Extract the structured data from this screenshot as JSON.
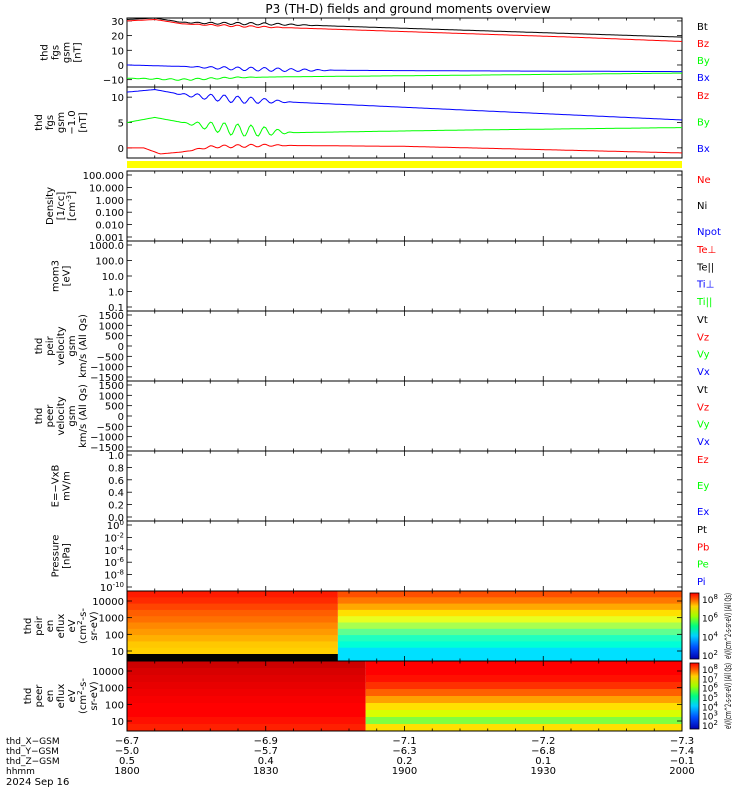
{
  "title": "P3 (TH-D) fields and ground moments overview",
  "colors": {
    "black": "#000000",
    "red": "#ff0000",
    "green": "#00ff00",
    "blue": "#0000ff",
    "yellow": "#ffff00"
  },
  "chart_data": [
    {
      "id": "fgs",
      "type": "line",
      "ylabel": [
        "thd",
        "fgs",
        "gsm",
        "[nT]"
      ],
      "ylim": [
        -15,
        32
      ],
      "yticks": [
        -10,
        0,
        10,
        20,
        30
      ],
      "tick_labels": [
        "−10",
        "0",
        "10",
        "20",
        "30"
      ],
      "legend": [
        {
          "name": "Bt",
          "color": "#000000"
        },
        {
          "name": "Bz",
          "color": "#ff0000"
        },
        {
          "name": "By",
          "color": "#00ff00"
        },
        {
          "name": "Bx",
          "color": "#0000ff"
        }
      ],
      "series": [
        {
          "name": "Bt",
          "color": "#000000",
          "x": [
            0,
            0.05,
            0.1,
            0.15,
            0.25,
            0.5,
            0.75,
            1
          ],
          "y": [
            31,
            32,
            29,
            28.5,
            28,
            25,
            22,
            19
          ],
          "osc": {
            "amp": 0.8,
            "start": 0.08,
            "end": 0.35
          }
        },
        {
          "name": "Bz",
          "color": "#ff0000",
          "x": [
            0,
            0.05,
            0.1,
            0.2,
            0.4,
            0.6,
            0.8,
            1
          ],
          "y": [
            30,
            31,
            28,
            26.5,
            24,
            21.5,
            19,
            16
          ],
          "osc": {
            "amp": 0.6,
            "start": 0.1,
            "end": 0.3
          }
        },
        {
          "name": "By",
          "color": "#00ff00",
          "x": [
            0,
            0.1,
            0.2,
            0.3,
            0.6,
            1
          ],
          "y": [
            -9,
            -10,
            -8.5,
            -8,
            -7,
            -5.5
          ],
          "osc": {
            "amp": 0.6,
            "start": 0.0,
            "end": 0.25
          }
        },
        {
          "name": "Bx",
          "color": "#0000ff",
          "x": [
            0,
            0.1,
            0.2,
            0.3,
            0.6,
            1
          ],
          "y": [
            0,
            -1,
            -2.5,
            -3.5,
            -4,
            -4.5
          ],
          "osc": {
            "amp": 1.3,
            "start": 0.1,
            "end": 0.38
          }
        }
      ]
    },
    {
      "id": "fgs-zoom",
      "type": "line",
      "ylabel": [
        "thd",
        "fgs",
        "gsm",
        "−1.0",
        "[nT]"
      ],
      "ylim": [
        -2,
        12
      ],
      "yticks": [
        0,
        5,
        10
      ],
      "tick_labels": [
        "0",
        "5",
        "10"
      ],
      "legend": [
        {
          "name": "Bz",
          "color": "#ff0000"
        },
        {
          "name": "By",
          "color": "#00ff00"
        },
        {
          "name": "Bx",
          "color": "#0000ff"
        }
      ],
      "series": [
        {
          "name": "Bz",
          "color": "#ff0000",
          "x": [
            0,
            0.03,
            0.06,
            0.1,
            0.15,
            0.25,
            0.5,
            1
          ],
          "y": [
            0,
            0,
            -1.2,
            -0.8,
            0.2,
            0.5,
            0.3,
            -1.0
          ],
          "osc": {
            "amp": 0.3,
            "start": 0.1,
            "end": 0.3
          }
        },
        {
          "name": "By",
          "color": "#00ff00",
          "x": [
            0,
            0.05,
            0.1,
            0.2,
            0.3,
            0.6,
            1
          ],
          "y": [
            5,
            6,
            5,
            3.5,
            3,
            3.5,
            4
          ],
          "osc": {
            "amp": 1.2,
            "start": 0.1,
            "end": 0.3
          }
        },
        {
          "name": "Bx",
          "color": "#0000ff",
          "x": [
            0,
            0.05,
            0.1,
            0.2,
            0.3,
            0.6,
            1
          ],
          "y": [
            11,
            11.5,
            10.5,
            9.5,
            9,
            7.5,
            5.5
          ],
          "osc": {
            "amp": 0.7,
            "start": 0.08,
            "end": 0.3
          }
        }
      ]
    },
    {
      "id": "density",
      "type": "line",
      "ylabel": [
        "Density",
        "[1/cc]",
        "[cm^-3]"
      ],
      "tick_labels": [
        "100.000",
        "10.000",
        "1.000",
        "0.100",
        "0.010",
        "0.001"
      ],
      "legend": [
        {
          "name": "Ne",
          "color": "#ff0000"
        },
        {
          "name": "Ni",
          "color": "#000000"
        },
        {
          "name": "Npot",
          "color": "#0000ff"
        }
      ]
    },
    {
      "id": "temperature",
      "type": "line",
      "ylabel": [
        "mom3",
        "[eV]"
      ],
      "tick_labels": [
        "1000.0",
        "100.0",
        "10.0",
        "1.0",
        "0.1"
      ],
      "legend": [
        {
          "name": "Te⊥",
          "color": "#ff0000"
        },
        {
          "name": "Te||",
          "color": "#000000"
        },
        {
          "name": "Ti⊥",
          "color": "#0000ff"
        },
        {
          "name": "Ti||",
          "color": "#00ff00"
        }
      ]
    },
    {
      "id": "peir-velocity",
      "type": "line",
      "ylabel": [
        "thd",
        "peir",
        "velocity",
        "gsm",
        "km/s (All Qs)"
      ],
      "tick_labels": [
        "1500",
        "1000",
        "500",
        "0",
        "−500",
        "−1000",
        "−1500"
      ],
      "legend": [
        {
          "name": "Vt",
          "color": "#000000"
        },
        {
          "name": "Vz",
          "color": "#ff0000"
        },
        {
          "name": "Vy",
          "color": "#00ff00"
        },
        {
          "name": "Vx",
          "color": "#0000ff"
        }
      ]
    },
    {
      "id": "peer-velocity",
      "type": "line",
      "ylabel": [
        "thd",
        "peer",
        "velocity",
        "gsm",
        "km/s (All Qs)"
      ],
      "tick_labels": [
        "1500",
        "1000",
        "500",
        "0",
        "−500",
        "−1000",
        "−1500"
      ],
      "legend": [
        {
          "name": "Vt",
          "color": "#000000"
        },
        {
          "name": "Vz",
          "color": "#ff0000"
        },
        {
          "name": "Vy",
          "color": "#00ff00"
        },
        {
          "name": "Vx",
          "color": "#0000ff"
        }
      ]
    },
    {
      "id": "efield",
      "type": "line",
      "ylabel": [
        "E=−VxB",
        "mV/m"
      ],
      "tick_labels": [
        "1.0",
        "0.8",
        "0.6",
        "0.4",
        "0.2",
        "0.0"
      ],
      "legend": [
        {
          "name": "Ez",
          "color": "#ff0000"
        },
        {
          "name": "Ey",
          "color": "#00ff00"
        },
        {
          "name": "Ex",
          "color": "#0000ff"
        }
      ]
    },
    {
      "id": "pressure",
      "type": "line",
      "ylabel": [
        "Pressure",
        "[nPa]"
      ],
      "tick_labels": [
        "10^0",
        "10^-2",
        "10^-4",
        "10^-6",
        "10^-8",
        "10^-10"
      ],
      "legend": [
        {
          "name": "Pt",
          "color": "#000000"
        },
        {
          "name": "Pb",
          "color": "#ff0000"
        },
        {
          "name": "Pe",
          "color": "#00ff00"
        },
        {
          "name": "Pi",
          "color": "#0000ff"
        }
      ]
    },
    {
      "id": "peir-spectrogram",
      "type": "heatmap",
      "ylabel": [
        "thd",
        "peir",
        "en",
        "eflux",
        "eV",
        "(cm^2-s-",
        "sr-eV)"
      ],
      "tick_labels": [
        "10000",
        "1000",
        "100",
        "10"
      ],
      "colorbar_labels": [
        "10^8",
        "10^6",
        "10^4",
        "10^2"
      ],
      "colorbar_title": "eV/(cm^2-s-sr-eV) (All Qs)",
      "split_x": 0.38,
      "bottom_black_frac": 0.1,
      "left_colors": [
        "#ff1a00",
        "#ff2a00",
        "#ff4400",
        "#ff5e00",
        "#ff7000",
        "#ff8800",
        "#ff9a00",
        "#ffb000",
        "#ffc800",
        "#ffd000"
      ],
      "right_colors": [
        "#ff5000",
        "#ff7800",
        "#ffa800",
        "#ffe000",
        "#e8ff20",
        "#a8ff50",
        "#60ff90",
        "#20ffc0",
        "#00ffd8",
        "#00e0ff"
      ]
    },
    {
      "id": "peer-spectrogram",
      "type": "heatmap",
      "ylabel": [
        "thd",
        "peer",
        "en",
        "eflux",
        "eV",
        "(cm^2-s-",
        "sr-eV)"
      ],
      "tick_labels": [
        "10000",
        "1000",
        "100",
        "10"
      ],
      "colorbar_labels": [
        "10^8",
        "10^7",
        "10^6",
        "10^5",
        "10^4",
        "10^3",
        "10^2"
      ],
      "colorbar_title": "eV/(cm^2-s-sr-eV) (All Qs)",
      "split_x": 0.43,
      "bottom_black_frac": 0,
      "left_colors": [
        "#cc0000",
        "#d80000",
        "#e00000",
        "#e80000",
        "#f00000",
        "#f80000",
        "#ff0000",
        "#ff0000",
        "#ff1000",
        "#ff2000"
      ],
      "right_colors": [
        "#ff0000",
        "#ff0000",
        "#ff1000",
        "#ff3000",
        "#ff6000",
        "#ffa000",
        "#ffe000",
        "#d8ff00",
        "#80ff40",
        "#ffe000"
      ]
    }
  ],
  "xaxis": {
    "rows": [
      {
        "label": "thd_X−GSM",
        "values": [
          "−6.7",
          "−6.9",
          "−7.1",
          "−7.2",
          "−7.3"
        ]
      },
      {
        "label": "thd_Y−GSM",
        "values": [
          "−5.0",
          "−5.7",
          "−6.3",
          "−6.8",
          "−7.4"
        ]
      },
      {
        "label": "thd_Z−GSM",
        "values": [
          "0.5",
          "0.4",
          "0.2",
          "0.1",
          "−0.1"
        ]
      },
      {
        "label": "hhmm",
        "values": [
          "1800",
          "1830",
          "1900",
          "1930",
          "2000"
        ]
      }
    ],
    "date": "2024 Sep 16"
  },
  "flag_bar_color": "#ffff00"
}
